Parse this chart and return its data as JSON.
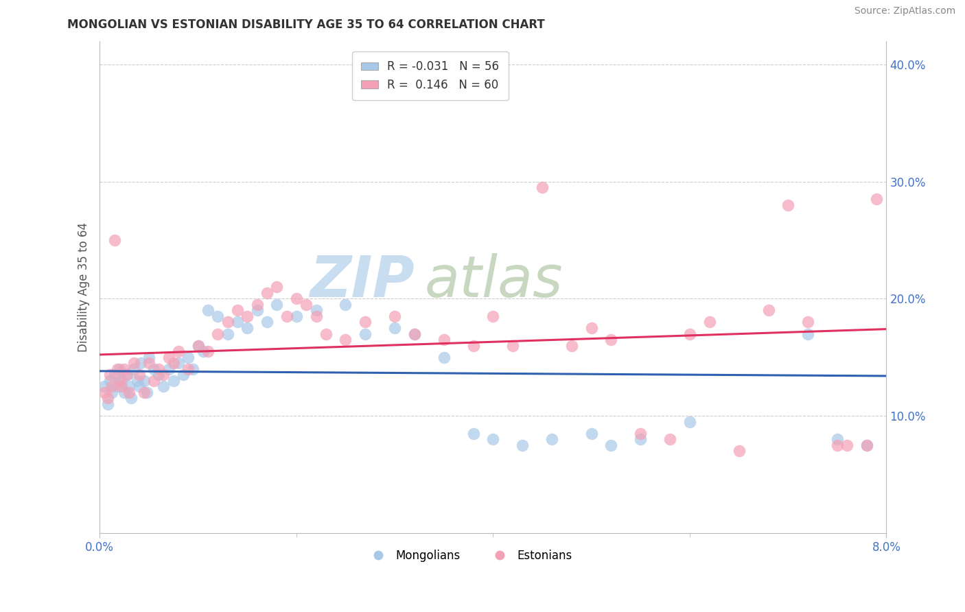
{
  "title": "MONGOLIAN VS ESTONIAN DISABILITY AGE 35 TO 64 CORRELATION CHART",
  "source": "Source: ZipAtlas.com",
  "ylabel": "Disability Age 35 to 64",
  "mongolian_R": -0.031,
  "mongolian_N": 56,
  "estonian_R": 0.146,
  "estonian_N": 60,
  "blue_color": "#a8c8e8",
  "pink_color": "#f4a0b5",
  "blue_line_color": "#3060b0",
  "pink_line_color": "#e03060",
  "watermark_zip_color": "#c8ddf0",
  "watermark_atlas_color": "#c8d8c0",
  "background_color": "#ffffff",
  "xlim": [
    0.0,
    8.0
  ],
  "ylim": [
    0.0,
    42.0
  ],
  "x_ticks": [
    0.0,
    8.0
  ],
  "y_ticks": [
    10.0,
    20.0,
    30.0,
    40.0
  ],
  "tick_color": "#4472c4",
  "grid_color": "#cccccc",
  "spine_color": "#bbbbbb",
  "mongolian_dots_x": [
    0.05,
    0.08,
    0.1,
    0.12,
    0.15,
    0.18,
    0.2,
    0.22,
    0.25,
    0.28,
    0.3,
    0.32,
    0.35,
    0.38,
    0.4,
    0.42,
    0.45,
    0.48,
    0.5,
    0.55,
    0.6,
    0.65,
    0.7,
    0.75,
    0.8,
    0.85,
    0.9,
    0.95,
    1.0,
    1.05,
    1.1,
    1.2,
    1.3,
    1.4,
    1.5,
    1.6,
    1.7,
    1.8,
    2.0,
    2.2,
    2.5,
    2.7,
    3.0,
    3.2,
    3.5,
    3.8,
    4.0,
    4.3,
    4.6,
    5.0,
    5.2,
    5.5,
    6.0,
    7.2,
    7.5,
    7.8
  ],
  "mongolian_dots_y": [
    12.5,
    11.0,
    13.0,
    12.0,
    13.5,
    12.5,
    14.0,
    13.0,
    12.0,
    13.5,
    12.5,
    11.5,
    14.0,
    13.0,
    12.5,
    14.5,
    13.0,
    12.0,
    15.0,
    14.0,
    13.5,
    12.5,
    14.0,
    13.0,
    14.5,
    13.5,
    15.0,
    14.0,
    16.0,
    15.5,
    19.0,
    18.5,
    17.0,
    18.0,
    17.5,
    19.0,
    18.0,
    19.5,
    18.5,
    19.0,
    19.5,
    17.0,
    17.5,
    17.0,
    15.0,
    8.5,
    8.0,
    7.5,
    8.0,
    8.5,
    7.5,
    8.0,
    9.5,
    17.0,
    8.0,
    7.5
  ],
  "estonian_dots_x": [
    0.05,
    0.08,
    0.1,
    0.12,
    0.15,
    0.18,
    0.2,
    0.22,
    0.25,
    0.28,
    0.3,
    0.35,
    0.4,
    0.45,
    0.5,
    0.55,
    0.6,
    0.65,
    0.7,
    0.75,
    0.8,
    0.9,
    1.0,
    1.1,
    1.2,
    1.3,
    1.4,
    1.5,
    1.6,
    1.7,
    1.8,
    1.9,
    2.0,
    2.1,
    2.2,
    2.3,
    2.5,
    2.7,
    3.0,
    3.2,
    3.5,
    3.8,
    4.0,
    4.2,
    4.5,
    4.8,
    5.0,
    5.2,
    5.5,
    5.8,
    6.0,
    6.2,
    6.5,
    6.8,
    7.0,
    7.2,
    7.5,
    7.6,
    7.8,
    7.9
  ],
  "estonian_dots_y": [
    12.0,
    11.5,
    13.5,
    12.5,
    25.0,
    14.0,
    13.0,
    12.5,
    14.0,
    13.5,
    12.0,
    14.5,
    13.5,
    12.0,
    14.5,
    13.0,
    14.0,
    13.5,
    15.0,
    14.5,
    15.5,
    14.0,
    16.0,
    15.5,
    17.0,
    18.0,
    19.0,
    18.5,
    19.5,
    20.5,
    21.0,
    18.5,
    20.0,
    19.5,
    18.5,
    17.0,
    16.5,
    18.0,
    18.5,
    17.0,
    16.5,
    16.0,
    18.5,
    16.0,
    29.5,
    16.0,
    17.5,
    16.5,
    8.5,
    8.0,
    17.0,
    18.0,
    7.0,
    19.0,
    28.0,
    18.0,
    7.5,
    7.5,
    7.5,
    28.5
  ]
}
